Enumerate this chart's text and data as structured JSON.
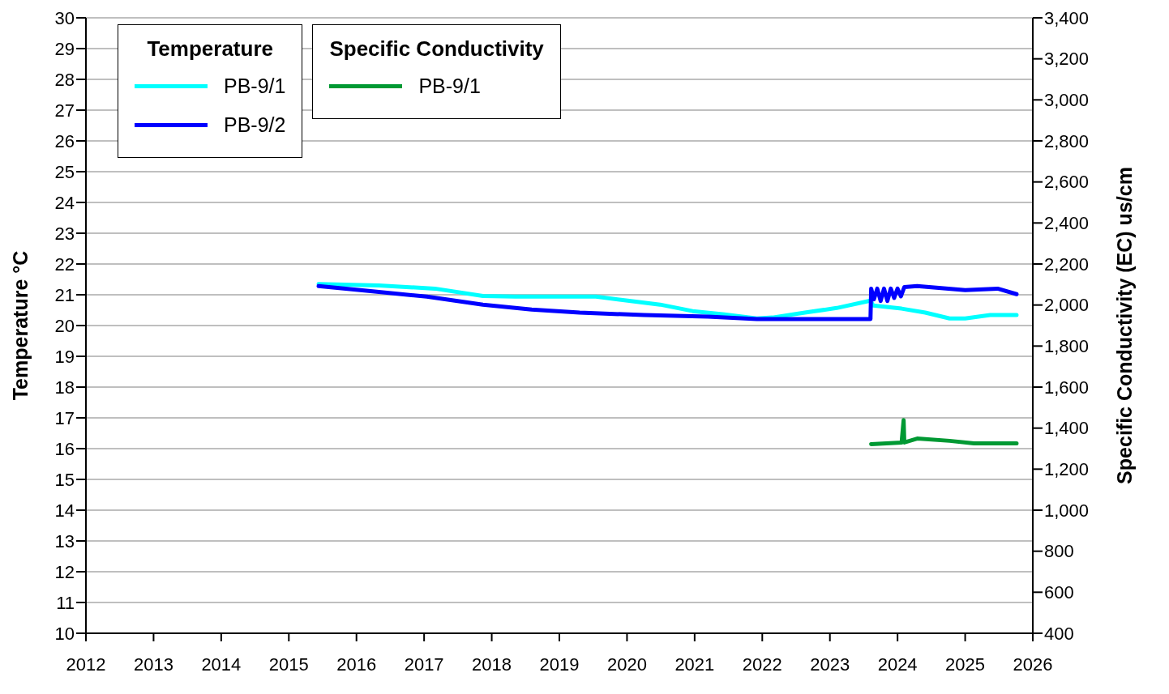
{
  "chart_data": {
    "type": "line",
    "ylabel": "Temperature °C",
    "y2label": "Specific Conductivity (EC) us/cm",
    "legend_title": [
      "Temperature",
      "Specific Conductivity"
    ],
    "xlim": [
      2012,
      2026
    ],
    "xticks": [
      2012,
      2013,
      2014,
      2015,
      2016,
      2017,
      2018,
      2019,
      2020,
      2021,
      2022,
      2023,
      2024,
      2025,
      2026
    ],
    "ylim": [
      10,
      30
    ],
    "yticks": [
      10,
      11,
      12,
      13,
      14,
      15,
      16,
      17,
      18,
      19,
      20,
      21,
      22,
      23,
      24,
      25,
      26,
      27,
      28,
      29,
      30
    ],
    "y2lim": [
      400,
      3400
    ],
    "y2ticks": [
      {
        "value": 400,
        "label": "400"
      },
      {
        "value": 600,
        "label": "600"
      },
      {
        "value": 800,
        "label": "800"
      },
      {
        "value": 1000,
        "label": "1,000"
      },
      {
        "value": 1200,
        "label": "1,200"
      },
      {
        "value": 1400,
        "label": "1,400"
      },
      {
        "value": 1600,
        "label": "1,600"
      },
      {
        "value": 1800,
        "label": "1,800"
      },
      {
        "value": 2000,
        "label": "2,000"
      },
      {
        "value": 2200,
        "label": "2,200"
      },
      {
        "value": 2400,
        "label": "2,400"
      },
      {
        "value": 2600,
        "label": "2,600"
      },
      {
        "value": 2800,
        "label": "2,800"
      },
      {
        "value": 3000,
        "label": "3,000"
      },
      {
        "value": 3200,
        "label": "3,200"
      },
      {
        "value": 3400,
        "label": "3,400"
      }
    ],
    "grid": "y",
    "legend": "top left",
    "line_style": "solid",
    "series": [
      {
        "name": "PB-9/1",
        "color": "#00ffff",
        "axis": "y",
        "x": [
          2015.44,
          2016.33,
          2017.16,
          2017.87,
          2018.35,
          2019.06,
          2019.54,
          2020.01,
          2020.49,
          2020.97,
          2021.44,
          2021.92,
          2022.15,
          2022.63,
          2023.1,
          2023.6,
          2023.64,
          2024.06,
          2024.41,
          2024.77,
          2025.0,
          2025.37,
          2025.76
        ],
        "values": [
          21.35,
          21.3,
          21.2,
          20.96,
          20.94,
          20.94,
          20.94,
          20.81,
          20.68,
          20.47,
          20.36,
          20.23,
          20.26,
          20.42,
          20.57,
          20.81,
          20.65,
          20.55,
          20.42,
          20.23,
          20.23,
          20.34,
          20.34
        ]
      },
      {
        "name": "PB-9/2",
        "color": "#0000ff",
        "axis": "y",
        "x": [
          2015.44,
          2016.21,
          2017.04,
          2017.87,
          2018.59,
          2019.3,
          2020.25,
          2021.2,
          2021.92,
          2022.63,
          2023.6,
          2023.61,
          2023.65,
          2023.7,
          2023.75,
          2023.8,
          2023.85,
          2023.9,
          2023.95,
          2024.0,
          2024.05,
          2024.1,
          2024.29,
          2025.0,
          2025.48,
          2025.76
        ],
        "values": [
          21.28,
          21.12,
          20.94,
          20.68,
          20.52,
          20.42,
          20.34,
          20.29,
          20.21,
          20.21,
          20.21,
          21.2,
          20.85,
          21.2,
          20.8,
          21.2,
          20.8,
          21.2,
          20.9,
          21.2,
          20.95,
          21.25,
          21.28,
          21.15,
          21.2,
          21.02
        ]
      },
      {
        "name": "PB-9/1",
        "color": "#009933",
        "axis": "y2",
        "x": [
          2023.61,
          2024.06,
          2024.09,
          2024.1,
          2024.29,
          2024.77,
          2025.13,
          2025.76
        ],
        "values": [
          1322,
          1330,
          1439,
          1330,
          1349,
          1338,
          1326,
          1326
        ]
      }
    ]
  }
}
